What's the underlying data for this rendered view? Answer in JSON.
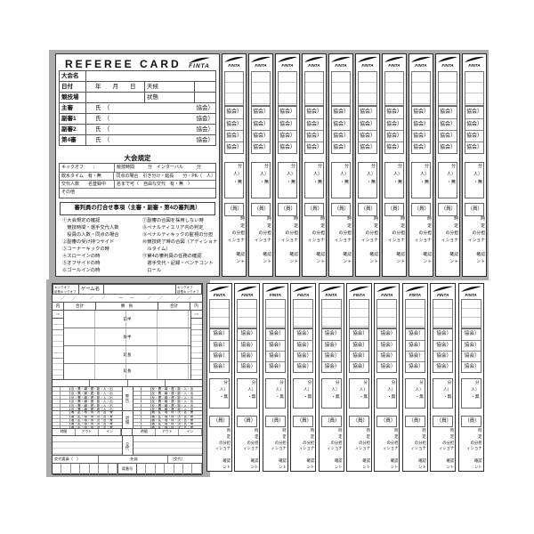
{
  "front_card": {
    "title": "REFEREE CARD",
    "brand": "FINTA",
    "info_rows": [
      {
        "label": "大会名",
        "value": "",
        "extra": "",
        "suffix": ""
      },
      {
        "label": "日付",
        "value": "年　　月　　日",
        "extra": "天候",
        "suffix": ""
      },
      {
        "label": "競技場",
        "value": "",
        "extra": "状態",
        "suffix": ""
      },
      {
        "label": "主審",
        "value": "氏　（",
        "extra": "",
        "suffix": "協会）"
      },
      {
        "label": "副審1",
        "value": "氏　（",
        "extra": "",
        "suffix": "協会）"
      },
      {
        "label": "副審2",
        "value": "氏　（",
        "extra": "",
        "suffix": "協会）"
      },
      {
        "label": "第4審",
        "value": "氏　（",
        "extra": "",
        "suffix": "協会）"
      }
    ],
    "reg_title": "大会規定",
    "reg_rows": [
      {
        "left": "キックオフ　　：",
        "right": "競技時間　　　分　インターバル　　　分"
      },
      {
        "left": "飲水タイム　有・無",
        "right": "同点の場合　引き分け・延長　　分・PK（　人）"
      },
      {
        "left": "交代人数　　名登録中",
        "right": "名まで可（　自由な交代　有・無　）"
      },
      {
        "left": "その他",
        "right": ""
      }
    ],
    "briefing_title": "審判員の打合せ事項（主審・副審・第4の審判員）",
    "briefing_left": [
      "①大会規定の確認",
      "　競技時間・選手交代人数",
      "　役員の人数・同点の場合",
      "②副審の受け持つサイド",
      "③コーナーキックの時",
      "④スローインの時",
      "⑤オフサイドの時",
      "⑥ゴールインの時"
    ],
    "briefing_right": [
      "⑦副審の合図を採用しない時",
      "⑧ペナルティエリア内の判定",
      "⑨ペナルティキックの監視の分担",
      "⑩競技終了時の合図（アディショナ",
      "　ルタイム）",
      "⑪第4の審判員の任務の確認",
      "　選手交代・記録・ベンチコント",
      "　ロール"
    ]
  },
  "strip": {
    "brand": "FINTA",
    "assoc": "協会）",
    "reg_rows": [
      "分",
      "人）",
      "・無"
    ],
    "member": "（員）",
    "fragments": [
      "時",
      "定",
      "の分担",
      "ィショナ",
      "",
      "確認",
      "ント",
      ""
    ],
    "count": 10
  },
  "back_card": {
    "kickoff_lines": [
      "キックオフ",
      "延長キックオフ"
    ],
    "game_label": "ゲーム名",
    "time_row": "／　／　　／　／　　―　―　　／　／　　／　／",
    "header_cells": [
      "内",
      "合計",
      "勝　負",
      "合計",
      "内"
    ],
    "side_col_label": "○×",
    "periods": [
      "前半",
      "後半",
      "延長",
      "延長"
    ],
    "caution_label": "警告",
    "caution_codes": "反・異・繰・遅・距・入・出",
    "sendoff_label": "退場",
    "sendoff_codes": "著・乱・唾・得・決・言・警",
    "sub_header": [
      "時間",
      "アウト",
      "イン"
    ],
    "sub_label": "交代",
    "bench_left": "交代要員（　）",
    "bench_center": "先発",
    "bench_right": "（交代）",
    "number_label": "背番号"
  }
}
